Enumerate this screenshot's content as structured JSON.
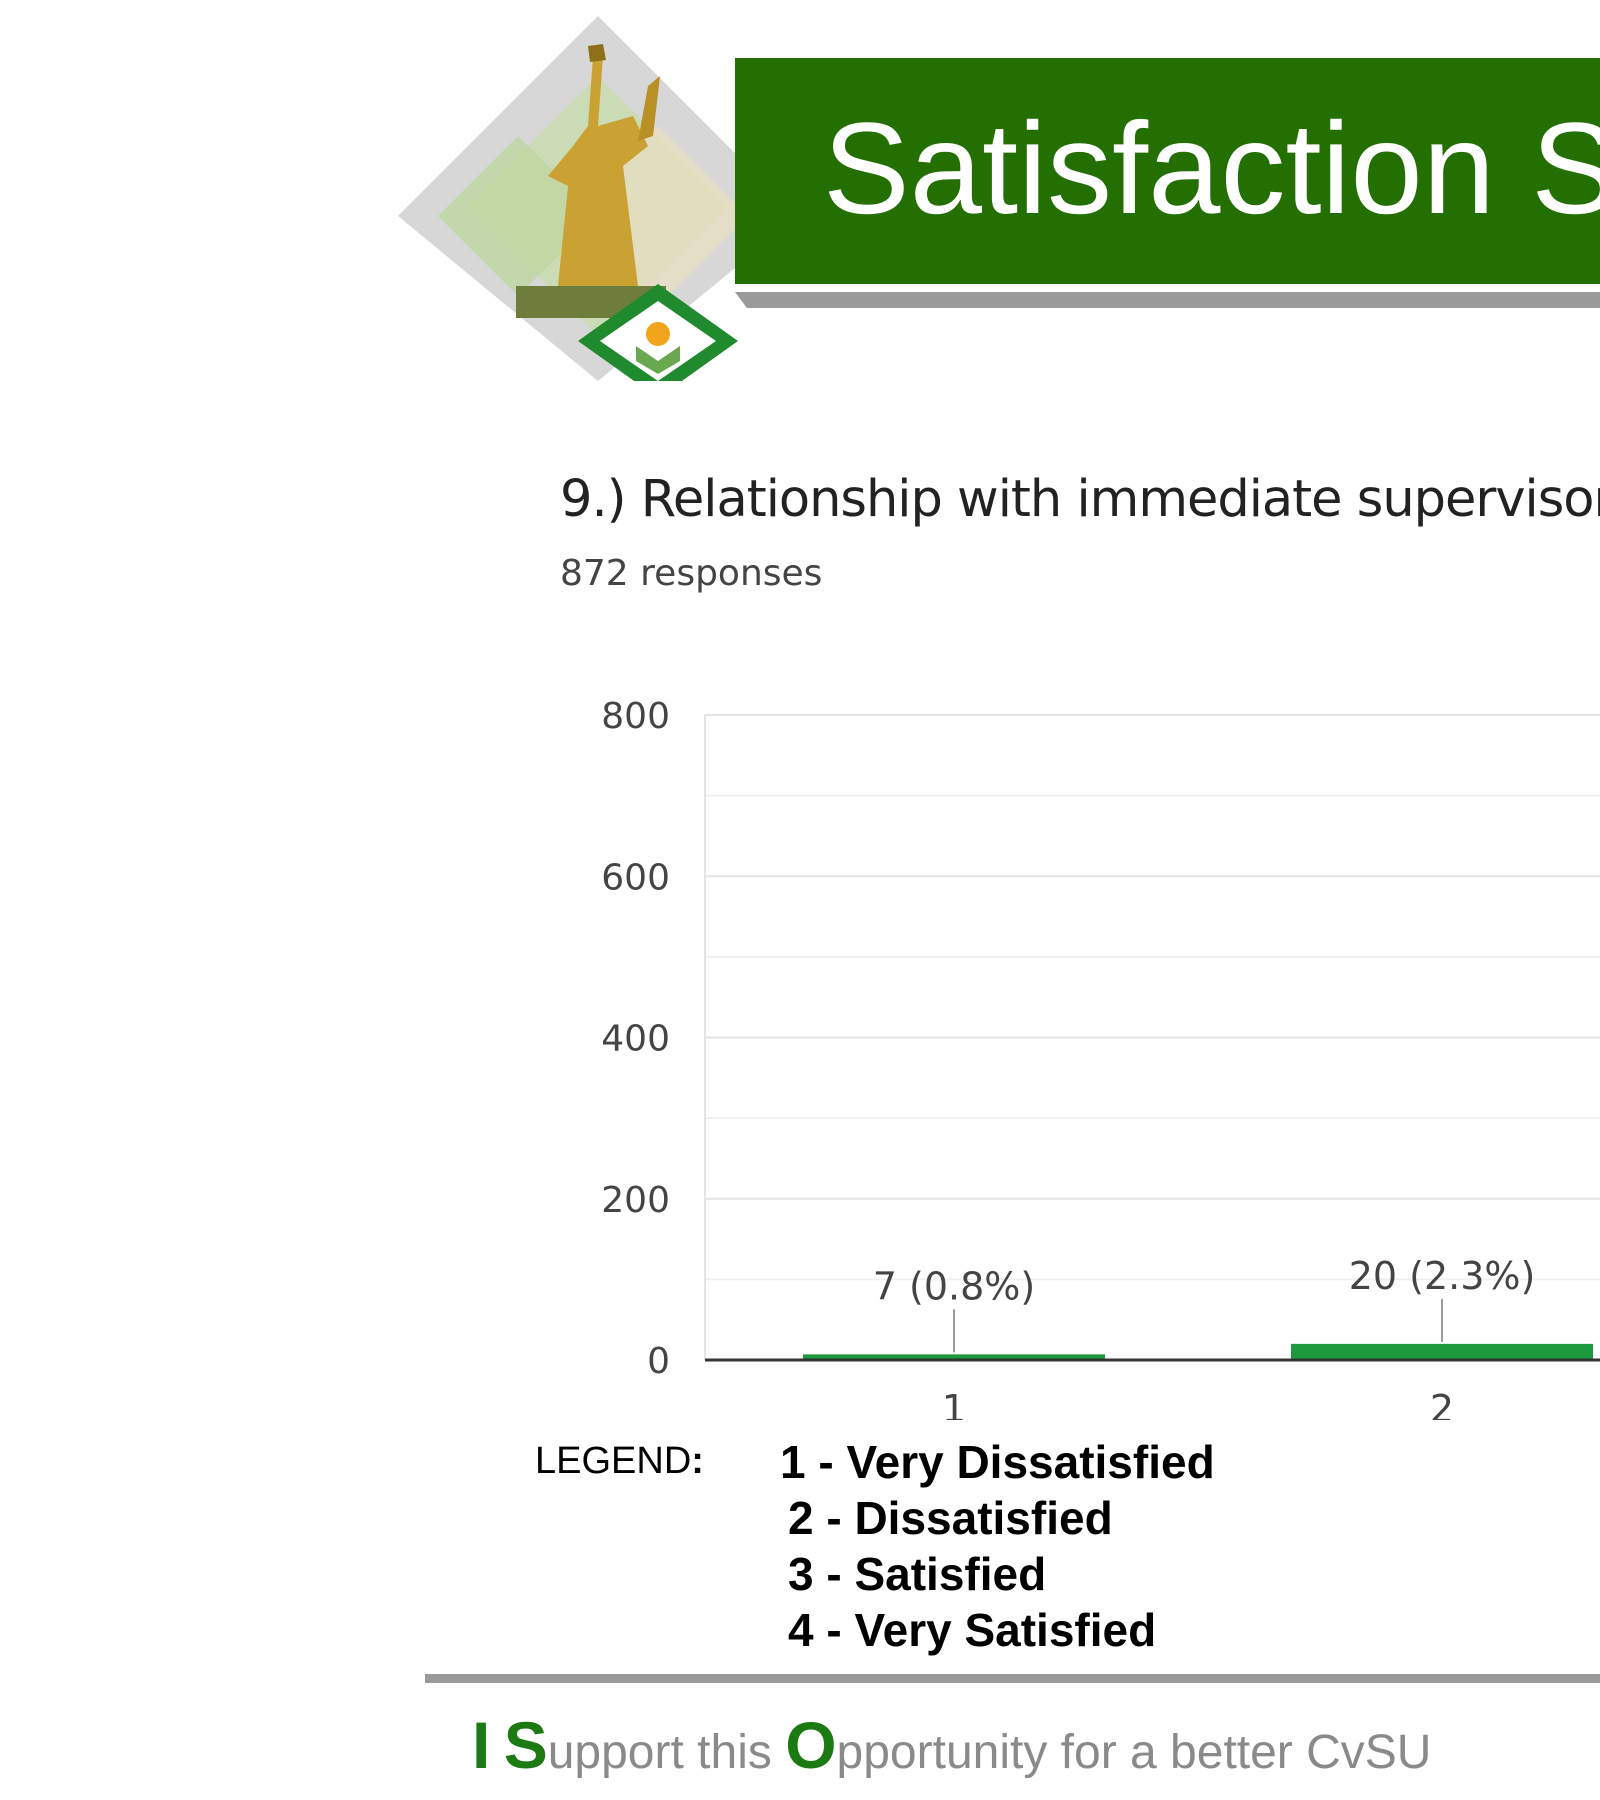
{
  "banner": {
    "title": "Satisfaction S"
  },
  "question": {
    "title": "9.) Relationship with immediate supervisor",
    "responses": "872 responses"
  },
  "chart_data": {
    "type": "bar",
    "categories": [
      "1",
      "2"
    ],
    "values": [
      7,
      20
    ],
    "data_labels": [
      "7 (0.8%)",
      "20 (2.3%)"
    ],
    "yticks": [
      "0",
      "200",
      "400",
      "600",
      "800"
    ],
    "ylim": [
      0,
      800
    ],
    "grid": true,
    "bar_color": "#1e9a3e"
  },
  "legend": {
    "label": "LEGEND",
    "label_colon": ":",
    "items": [
      "1  -  Very Dissatisfied",
      "2 -  Dissatisfied",
      "3 -  Satisfied",
      "4 - Very Satisfied"
    ]
  },
  "slogan": {
    "i": "I",
    "s": "S",
    "upport": "upport this ",
    "o": "O",
    "rest": "pportunity for a better CvSU"
  },
  "colors": {
    "banner": "#246f02",
    "accent": "#1b7a12",
    "rule": "#9a9a9a"
  }
}
